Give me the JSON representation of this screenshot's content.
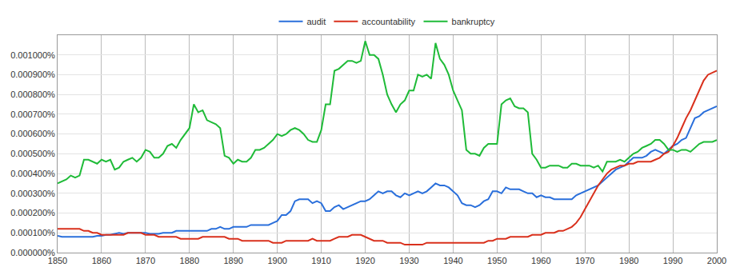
{
  "chart_data": {
    "type": "line",
    "x": [
      1850,
      1851,
      1852,
      1853,
      1854,
      1855,
      1856,
      1857,
      1858,
      1859,
      1860,
      1861,
      1862,
      1863,
      1864,
      1865,
      1866,
      1867,
      1868,
      1869,
      1870,
      1871,
      1872,
      1873,
      1874,
      1875,
      1876,
      1877,
      1878,
      1879,
      1880,
      1881,
      1882,
      1883,
      1884,
      1885,
      1886,
      1887,
      1888,
      1889,
      1890,
      1891,
      1892,
      1893,
      1894,
      1895,
      1896,
      1897,
      1898,
      1899,
      1900,
      1901,
      1902,
      1903,
      1904,
      1905,
      1906,
      1907,
      1908,
      1909,
      1910,
      1911,
      1912,
      1913,
      1914,
      1915,
      1916,
      1917,
      1918,
      1919,
      1920,
      1921,
      1922,
      1923,
      1924,
      1925,
      1926,
      1927,
      1928,
      1929,
      1930,
      1931,
      1932,
      1933,
      1934,
      1935,
      1936,
      1937,
      1938,
      1939,
      1940,
      1941,
      1942,
      1943,
      1944,
      1945,
      1946,
      1947,
      1948,
      1949,
      1950,
      1951,
      1952,
      1953,
      1954,
      1955,
      1956,
      1957,
      1958,
      1959,
      1960,
      1961,
      1962,
      1963,
      1964,
      1965,
      1966,
      1967,
      1968,
      1969,
      1970,
      1971,
      1972,
      1973,
      1974,
      1975,
      1976,
      1977,
      1978,
      1979,
      1980,
      1981,
      1982,
      1983,
      1984,
      1985,
      1986,
      1987,
      1988,
      1989,
      1990,
      1991,
      1992,
      1993,
      1994,
      1995,
      1996,
      1997,
      1998,
      1999,
      2000
    ],
    "series": [
      {
        "name": "audit",
        "color": "#2a6fdb",
        "values": [
          8.5e-05,
          8e-05,
          8e-05,
          8e-05,
          8e-05,
          8e-05,
          8e-05,
          8e-05,
          8e-05,
          8.5e-05,
          8.5e-05,
          9e-05,
          9e-05,
          9.5e-05,
          0.0001,
          9.5e-05,
          0.0001,
          0.0001,
          0.0001,
          0.0001,
          0.0001,
          9.5e-05,
          9.5e-05,
          9.5e-05,
          0.0001,
          0.0001,
          0.0001,
          0.00011,
          0.00011,
          0.00011,
          0.00011,
          0.00011,
          0.00011,
          0.00011,
          0.00011,
          0.00012,
          0.00012,
          0.00013,
          0.00012,
          0.00012,
          0.00013,
          0.00013,
          0.00013,
          0.00013,
          0.00014,
          0.00014,
          0.00014,
          0.00014,
          0.00014,
          0.00015,
          0.00016,
          0.00019,
          0.00019,
          0.00021,
          0.00026,
          0.00027,
          0.00027,
          0.00027,
          0.00025,
          0.00026,
          0.00025,
          0.00021,
          0.00021,
          0.00023,
          0.00024,
          0.00022,
          0.00023,
          0.00024,
          0.00025,
          0.00026,
          0.00026,
          0.00027,
          0.00029,
          0.00031,
          0.0003,
          0.00031,
          0.00031,
          0.00029,
          0.00028,
          0.0003,
          0.00029,
          0.0003,
          0.00031,
          0.0003,
          0.00031,
          0.00033,
          0.00035,
          0.00034,
          0.00034,
          0.00033,
          0.00031,
          0.00029,
          0.00025,
          0.00024,
          0.00024,
          0.00023,
          0.00024,
          0.00026,
          0.00027,
          0.00031,
          0.00031,
          0.0003,
          0.00033,
          0.00032,
          0.00032,
          0.00032,
          0.00031,
          0.0003,
          0.0003,
          0.00028,
          0.00029,
          0.00028,
          0.00028,
          0.00027,
          0.00027,
          0.00027,
          0.00027,
          0.00027,
          0.00029,
          0.0003,
          0.00031,
          0.00032,
          0.00033,
          0.00034,
          0.00036,
          0.00038,
          0.0004,
          0.00042,
          0.00043,
          0.00044,
          0.00046,
          0.00048,
          0.00048,
          0.00048,
          0.00049,
          0.00051,
          0.00052,
          0.00051,
          0.0005,
          0.00052,
          0.00054,
          0.00055,
          0.00057,
          0.00058,
          0.00063,
          0.00068,
          0.00069,
          0.00071,
          0.00072,
          0.00073,
          0.00074
        ]
      },
      {
        "name": "accountability",
        "color": "#d9301c",
        "values": [
          0.00012,
          0.00012,
          0.00012,
          0.00012,
          0.00012,
          0.00012,
          0.00011,
          0.00011,
          0.0001,
          0.0001,
          9e-05,
          9e-05,
          9e-05,
          9e-05,
          9e-05,
          9e-05,
          0.0001,
          0.0001,
          0.0001,
          0.0001,
          9e-05,
          9e-05,
          9e-05,
          8e-05,
          8e-05,
          8e-05,
          8e-05,
          8e-05,
          7e-05,
          7e-05,
          7e-05,
          7e-05,
          7e-05,
          8e-05,
          8e-05,
          8e-05,
          8e-05,
          8e-05,
          8e-05,
          7e-05,
          7e-05,
          7e-05,
          6e-05,
          6e-05,
          6e-05,
          6e-05,
          6e-05,
          6e-05,
          6e-05,
          5e-05,
          5e-05,
          5e-05,
          6e-05,
          6e-05,
          6e-05,
          6e-05,
          6e-05,
          6e-05,
          7e-05,
          6e-05,
          6e-05,
          6e-05,
          6e-05,
          7e-05,
          8e-05,
          8e-05,
          8e-05,
          9e-05,
          9e-05,
          9e-05,
          8e-05,
          7e-05,
          6e-05,
          6e-05,
          6e-05,
          5e-05,
          5e-05,
          5e-05,
          5e-05,
          4e-05,
          4e-05,
          4e-05,
          4e-05,
          4e-05,
          5e-05,
          5e-05,
          5e-05,
          5e-05,
          5e-05,
          5e-05,
          5e-05,
          5e-05,
          5e-05,
          5e-05,
          5e-05,
          5e-05,
          5e-05,
          5e-05,
          6e-05,
          6e-05,
          7e-05,
          7e-05,
          7e-05,
          8e-05,
          8e-05,
          8e-05,
          8e-05,
          8e-05,
          9e-05,
          9e-05,
          9e-05,
          0.0001,
          0.0001,
          0.0001,
          0.00011,
          0.00011,
          0.00012,
          0.00013,
          0.00015,
          0.00018,
          0.00022,
          0.00026,
          0.0003,
          0.00034,
          0.00037,
          0.0004,
          0.00042,
          0.00043,
          0.00044,
          0.00044,
          0.00045,
          0.00045,
          0.00046,
          0.00046,
          0.00046,
          0.00046,
          0.00047,
          0.00048,
          0.0005,
          0.00051,
          0.00054,
          0.00058,
          0.00063,
          0.00068,
          0.00072,
          0.00077,
          0.00082,
          0.00087,
          0.0009,
          0.00091,
          0.00092
        ]
      },
      {
        "name": "bankruptcy",
        "color": "#1fbb38",
        "values": [
          0.00035,
          0.00036,
          0.00037,
          0.00039,
          0.00038,
          0.00039,
          0.00047,
          0.00047,
          0.00046,
          0.00045,
          0.00047,
          0.00046,
          0.00047,
          0.00042,
          0.00043,
          0.00046,
          0.00047,
          0.00048,
          0.00046,
          0.00048,
          0.00052,
          0.00051,
          0.00048,
          0.00048,
          0.0005,
          0.00054,
          0.00055,
          0.00053,
          0.00057,
          0.0006,
          0.00063,
          0.00075,
          0.00071,
          0.00072,
          0.00067,
          0.00066,
          0.00065,
          0.00063,
          0.00049,
          0.00048,
          0.00045,
          0.00047,
          0.00046,
          0.00046,
          0.00048,
          0.00052,
          0.00052,
          0.00053,
          0.00055,
          0.00057,
          0.0006,
          0.00059,
          0.0006,
          0.00062,
          0.00063,
          0.00062,
          0.0006,
          0.00057,
          0.00056,
          0.00056,
          0.00062,
          0.00075,
          0.00075,
          0.00092,
          0.00093,
          0.00095,
          0.00097,
          0.00097,
          0.00096,
          0.00097,
          0.00107,
          0.001,
          0.001,
          0.00098,
          0.0009,
          0.0008,
          0.00075,
          0.00071,
          0.00075,
          0.00077,
          0.00082,
          0.00082,
          0.0009,
          0.00089,
          0.0009,
          0.00088,
          0.00106,
          0.00098,
          0.00095,
          0.0009,
          0.00082,
          0.00077,
          0.00072,
          0.00052,
          0.0005,
          0.0005,
          0.00049,
          0.00053,
          0.00055,
          0.00055,
          0.00055,
          0.00075,
          0.00077,
          0.00078,
          0.00074,
          0.00073,
          0.00073,
          0.00071,
          0.0005,
          0.00047,
          0.00043,
          0.00043,
          0.00044,
          0.00044,
          0.00044,
          0.00043,
          0.00043,
          0.00045,
          0.00045,
          0.00044,
          0.00044,
          0.00044,
          0.00043,
          0.00044,
          0.00041,
          0.00046,
          0.00046,
          0.00046,
          0.00047,
          0.00046,
          0.00048,
          0.0005,
          0.00051,
          0.00053,
          0.00054,
          0.00055,
          0.00057,
          0.00057,
          0.00055,
          0.00052,
          0.00052,
          0.00051,
          0.00052,
          0.00052,
          0.00051,
          0.00053,
          0.00055,
          0.00056,
          0.00056,
          0.00056,
          0.00057
        ]
      }
    ],
    "xlim": [
      1850,
      2000
    ],
    "xticks": [
      1850,
      1860,
      1870,
      1880,
      1890,
      1900,
      1910,
      1920,
      1930,
      1940,
      1950,
      1960,
      1970,
      1980,
      1990,
      2000
    ],
    "ylim": [
      0,
      0.0011
    ],
    "yticks": [
      {
        "value": 0,
        "label": "0.000000%"
      },
      {
        "value": 0.0001,
        "label": "0.000100%"
      },
      {
        "value": 0.0002,
        "label": "0.000200%"
      },
      {
        "value": 0.0003,
        "label": "0.000300%"
      },
      {
        "value": 0.0004,
        "label": "0.000400%"
      },
      {
        "value": 0.0005,
        "label": "0.000500%"
      },
      {
        "value": 0.0006,
        "label": "0.000600%"
      },
      {
        "value": 0.0007,
        "label": "0.000700%"
      },
      {
        "value": 0.0008,
        "label": "0.000800%"
      },
      {
        "value": 0.0009,
        "label": "0.000900%"
      },
      {
        "value": 0.001,
        "label": "0.001000%"
      }
    ],
    "grid": true,
    "legend": "top"
  }
}
